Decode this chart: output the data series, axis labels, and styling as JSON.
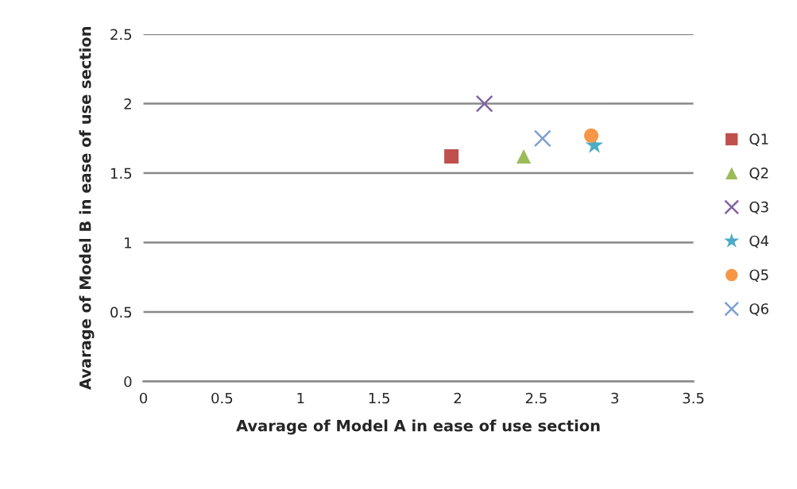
{
  "chart_data": {
    "type": "scatter",
    "xlabel": "Avarage of Model A in ease of use section",
    "ylabel": "Avarage of Model B in ease of use section",
    "xlim": [
      0,
      3.5
    ],
    "xticks": [
      0,
      0.5,
      1,
      1.5,
      2,
      2.5,
      3,
      3.5
    ],
    "ylim": [
      0,
      2.5
    ],
    "yticks": [
      0,
      0.5,
      1,
      1.5,
      2,
      2.5
    ],
    "grid": "y",
    "legend": "right",
    "series": [
      {
        "name": "Q1",
        "color": "#c0504d",
        "marker": "square",
        "x": [
          1.96
        ],
        "values": [
          1.62
        ]
      },
      {
        "name": "Q2",
        "color": "#9bbb59",
        "marker": "triangle",
        "x": [
          2.42
        ],
        "values": [
          1.62
        ]
      },
      {
        "name": "Q3",
        "color": "#8064a2",
        "marker": "cross",
        "x": [
          2.17
        ],
        "values": [
          2.0
        ]
      },
      {
        "name": "Q4",
        "color": "#4bacc6",
        "marker": "star",
        "x": [
          2.87
        ],
        "values": [
          1.7
        ]
      },
      {
        "name": "Q5",
        "color": "#f79646",
        "marker": "circle",
        "x": [
          2.85
        ],
        "values": [
          1.77
        ]
      },
      {
        "name": "Q6",
        "color": "#7f9fd0",
        "marker": "cross",
        "x": [
          2.54
        ],
        "values": [
          1.75
        ]
      }
    ]
  }
}
